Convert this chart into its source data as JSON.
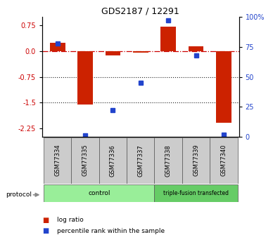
{
  "title": "GDS2187 / 12291",
  "samples": [
    "GSM77334",
    "GSM77335",
    "GSM77336",
    "GSM77337",
    "GSM77338",
    "GSM77339",
    "GSM77340"
  ],
  "log_ratio": [
    0.25,
    -1.55,
    -0.12,
    -0.05,
    0.72,
    0.15,
    -2.1
  ],
  "percentile_rank": [
    78,
    1,
    22,
    45,
    97,
    68,
    2
  ],
  "groups": [
    {
      "label": "control",
      "start": 0,
      "end": 4,
      "color": "#99ee99"
    },
    {
      "label": "triple-fusion transfected",
      "start": 4,
      "end": 7,
      "color": "#66cc66"
    }
  ],
  "ylim_left": [
    -2.5,
    1.0
  ],
  "ylim_right": [
    0,
    100
  ],
  "left_ticks": [
    0.75,
    0.0,
    -0.75,
    -1.5,
    -2.25
  ],
  "right_ticks": [
    100,
    75,
    50,
    25,
    0
  ],
  "bar_color_red": "#cc2200",
  "bar_color_blue": "#2244cc",
  "hline_color": "#cc0000",
  "dotline_color": "#222222",
  "bar_width": 0.55,
  "sample_box_color": "#cccccc",
  "protocol_arrow_color": "#888888"
}
